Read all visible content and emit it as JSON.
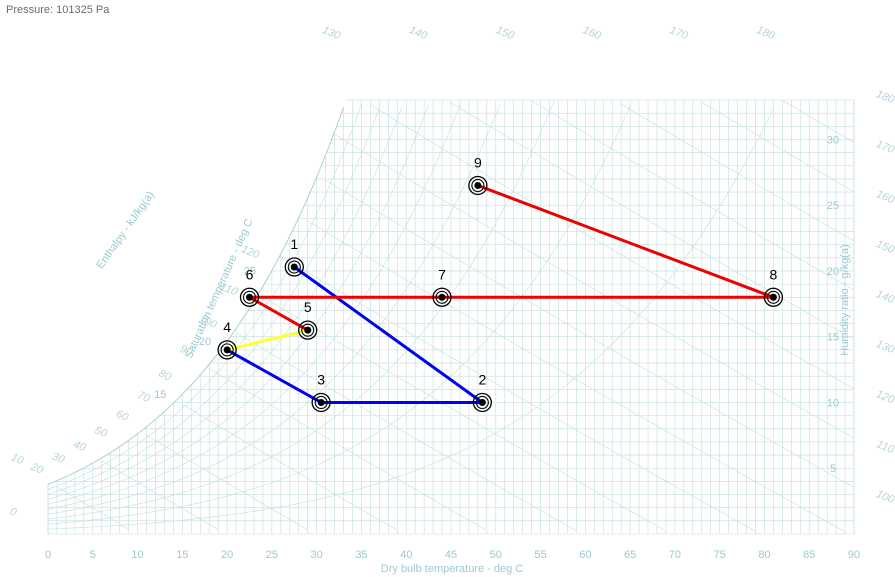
{
  "header": {
    "pressure_label": "Pressure: 101325 Pa"
  },
  "chart_data": {
    "type": "line",
    "title": "",
    "xlabel": "Dry bulb temperature - deg C",
    "ylabel": "Humidity ratio - g/kg(a)",
    "saturation_axis_label": "Saturation temperature - deg C",
    "enthalpy_axis_label": "Enthalpy - kJ/kg(a)",
    "xlim": [
      0,
      90
    ],
    "ylim": [
      0,
      33
    ],
    "grid": true,
    "x_ticks": [
      "0",
      "5",
      "10",
      "15",
      "20",
      "25",
      "30",
      "35",
      "40",
      "45",
      "50",
      "55",
      "60",
      "65",
      "70",
      "75",
      "80",
      "85",
      "90"
    ],
    "y_ticks": [
      "5",
      "10",
      "15",
      "20",
      "25",
      "30"
    ],
    "saturation_ticks": [
      "15",
      "20",
      "25"
    ],
    "enthalpy_ticks": [
      "0",
      "10",
      "20",
      "30",
      "40",
      "50",
      "60",
      "70",
      "80",
      "90",
      "100",
      "110",
      "120",
      "130",
      "140",
      "150",
      "160",
      "170",
      "180"
    ],
    "colors": {
      "blue": "#0000ee",
      "red": "#ee0000",
      "yellow": "#ffff33",
      "grid": "#c3dede",
      "axis_text": "#9cc9d2"
    },
    "points": [
      {
        "label": "1",
        "x": 27.5,
        "y": 20.3
      },
      {
        "label": "2",
        "x": 48.5,
        "y": 10.0
      },
      {
        "label": "3",
        "x": 30.5,
        "y": 10.0
      },
      {
        "label": "4",
        "x": 20.0,
        "y": 14.0
      },
      {
        "label": "5",
        "x": 29.0,
        "y": 15.5
      },
      {
        "label": "6",
        "x": 22.5,
        "y": 18.0
      },
      {
        "label": "7",
        "x": 44.0,
        "y": 18.0
      },
      {
        "label": "8",
        "x": 81.0,
        "y": 18.0
      },
      {
        "label": "9",
        "x": 48.0,
        "y": 26.5
      }
    ],
    "series": [
      {
        "color": "#0000ee",
        "points": [
          "1",
          "2",
          "3",
          "4"
        ]
      },
      {
        "color": "#ffff33",
        "points": [
          "4",
          "5"
        ]
      },
      {
        "color": "#ee0000",
        "points": [
          "5",
          "6",
          "7",
          "8",
          "9"
        ]
      }
    ]
  }
}
